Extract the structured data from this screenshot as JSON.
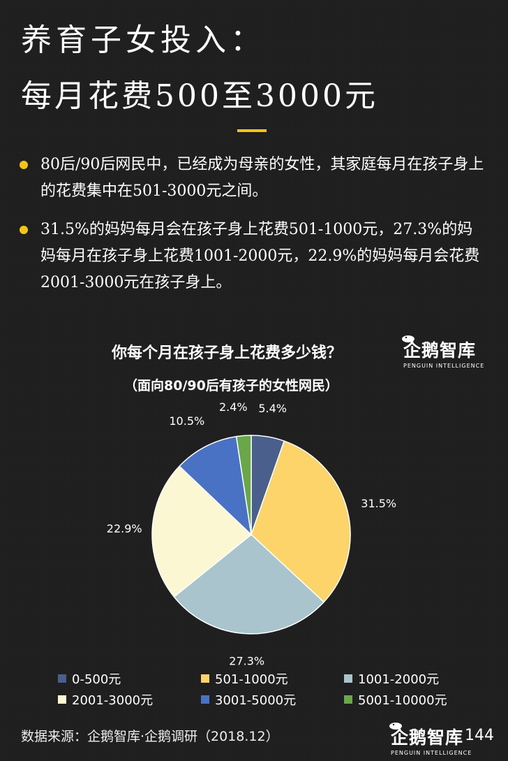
{
  "header": {
    "title_line1": "养育子女投入：",
    "title_line2": "每月花费500至3000元"
  },
  "bullets": [
    "80后/90后网民中，已经成为母亲的女性，其家庭每月在孩子身上的花费集中在501-3000元之间。",
    "31.5%的妈妈每月会在孩子身上花费501-1000元，27.3%的妈妈每月在孩子身上花费1001-2000元，22.9%的妈妈每月会花费2001-3000元在孩子身上。"
  ],
  "colors": {
    "background": "#1e1e1e",
    "accent": "#f2c518"
  },
  "logo": {
    "name": "企鹅智库",
    "subtitle": "PENGUIN INTELLIGENCE",
    "icon": "penguin-icon"
  },
  "chart_data": {
    "type": "pie",
    "title": "你每个月在孩子身上花费多少钱？",
    "subtitle": "（面向80/90后有孩子的女性网民）",
    "categories": [
      "0-500元",
      "501-1000元",
      "1001-2000元",
      "2001-3000元",
      "3001-5000元",
      "5001-10000元"
    ],
    "values": [
      5.4,
      31.5,
      27.3,
      22.9,
      10.5,
      2.4
    ],
    "labels": [
      "5.4%",
      "31.5%",
      "27.3%",
      "22.9%",
      "10.5%",
      "2.4%"
    ],
    "colors": [
      "#4a5f8b",
      "#fcd46a",
      "#a9c4cc",
      "#fcf7d3",
      "#4a72c4",
      "#6aa64a"
    ],
    "legend_position": "bottom"
  },
  "footer": {
    "source": "数据来源：企鹅智库·企鹅调研（2018.12）",
    "page_number": "144"
  }
}
